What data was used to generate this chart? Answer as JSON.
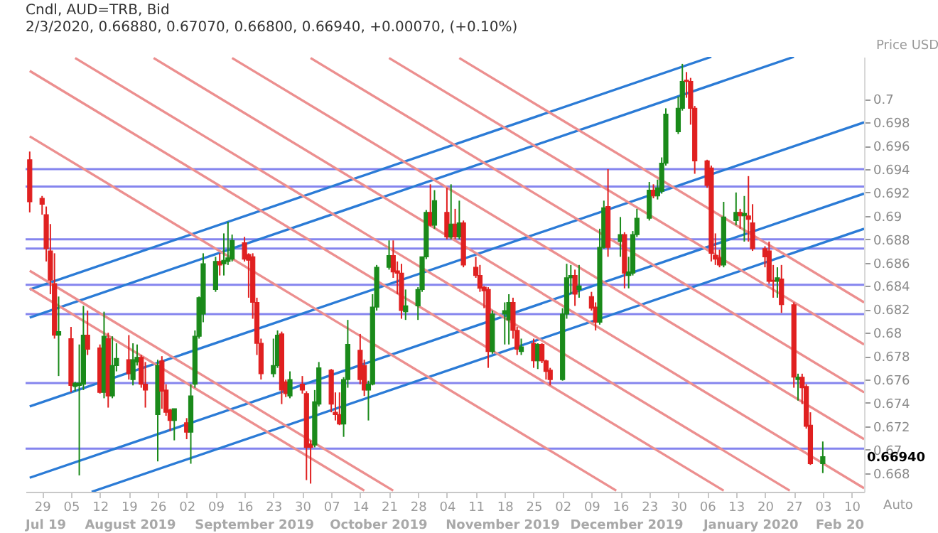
{
  "chart_data": {
    "type": "candlestick",
    "title": "Cndl, AUD=TRB, Bid",
    "subtitle": "2/3/2020, 0.66880, 0.67070, 0.66800, 0.66940, +0.00070, (+0.10%)",
    "ylabel": "Price USD",
    "colors": [
      "#e02020",
      "#e02020",
      "#e02020",
      "#e02020",
      "#e02020",
      "#1a8a1a",
      "#e02020",
      "#1a8a1a",
      "#1a8a1a",
      "#1a8a1a",
      "#e02020",
      "#e02020",
      "#1a8a1a",
      "#e02020",
      "#1a8a1a",
      "#1a8a1a",
      "#e02020",
      "#1a8a1a",
      "#1a8a1a",
      "#e02020",
      "#e02020",
      "#1a8a1a",
      "#e02020",
      "#e02020",
      "#e02020",
      "#1a8a1a",
      "#e02020",
      "#1a8a1a",
      "#1a8a1a",
      "#1a8a1a",
      "#1a8a1a",
      "#1a8a1a",
      "#e02020",
      "#1a8a1a",
      "#1a8a1a",
      "#1a8a1a",
      "#e02020",
      "#e02020",
      "#e02020",
      "#e02020",
      "#e02020",
      "#1a8a1a",
      "#1a8a1a",
      "#e02020",
      "#e02020",
      "#1a8a1a",
      "#e02020",
      "#e02020",
      "#e02020",
      "#1a8a1a",
      "#1a8a1a",
      "#e02020",
      "#e02020",
      "#e02020",
      "#1a8a1a",
      "#1a8a1a",
      "#e02020",
      "#e02020",
      "#1a8a1a",
      "#1a8a1a",
      "#1a8a1a",
      "#1a8a1a",
      "#e02020",
      "#e02020",
      "#e02020",
      "#1a8a1a",
      "#1a8a1a",
      "#1a8a1a",
      "#1a8a1a",
      "#e02020",
      "#1a8a1a",
      "#e02020",
      "#1a8a1a",
      "#e02020",
      "#1a8a1a",
      "#e02020",
      "#e02020",
      "#e02020",
      "#e02020",
      "#e02020",
      "#1a8a1a",
      "#1a8a1a",
      "#1a8a1a",
      "#e02020",
      "#e02020",
      "#1a8a1a",
      "#e02020",
      "#1a8a1a",
      "#e02020",
      "#e02020",
      "#e02020",
      "#1a8a1a",
      "#1a8a1a",
      "#1a8a1a",
      "#e02020",
      "#1a8a1a",
      "#e02020",
      "#e02020",
      "#1a8a1a",
      "#1a8a1a",
      "#e02020",
      "#1a8a1a",
      "#e02020",
      "#1a8a1a",
      "#1a8a1a",
      "#1a8a1a",
      "#1a8a1a",
      "#e02020",
      "#1a8a1a",
      "#1a8a1a",
      "#1a8a1a",
      "#1a8a1a",
      "#1a8a1a",
      "#e02020",
      "#e02020",
      "#e02020",
      "#e02020",
      "#e02020",
      "#e02020",
      "#e02020",
      "#1a8a1a",
      "#1a8a1a",
      "#e02020",
      "#1a8a1a",
      "#e02020",
      "#e02020",
      "#e02020",
      "#e02020",
      "#e02020",
      "#1a8a1a",
      "#e02020",
      "#e02020",
      "#1a8a1a",
      "#e02020",
      "#e02020",
      "#e02020",
      "#1a8a1a"
    ],
    "x": [
      "2019-07-26",
      "2019-07-29",
      "2019-07-30",
      "2019-07-31",
      "2019-08-01",
      "2019-08-02",
      "2019-08-05",
      "2019-08-06",
      "2019-08-07",
      "2019-08-08",
      "2019-08-09",
      "2019-08-12",
      "2019-08-13",
      "2019-08-14",
      "2019-08-15",
      "2019-08-16",
      "2019-08-19",
      "2019-08-20",
      "2019-08-21",
      "2019-08-22",
      "2019-08-23",
      "2019-08-26",
      "2019-08-27",
      "2019-08-28",
      "2019-08-29",
      "2019-08-30",
      "2019-09-02",
      "2019-09-03",
      "2019-09-04",
      "2019-09-05",
      "2019-09-06",
      "2019-09-09",
      "2019-09-10",
      "2019-09-11",
      "2019-09-12",
      "2019-09-13",
      "2019-09-16",
      "2019-09-17",
      "2019-09-18",
      "2019-09-19",
      "2019-09-20",
      "2019-09-23",
      "2019-09-24",
      "2019-09-25",
      "2019-09-26",
      "2019-09-27",
      "2019-09-30",
      "2019-10-01",
      "2019-10-02",
      "2019-10-03",
      "2019-10-04",
      "2019-10-07",
      "2019-10-08",
      "2019-10-09",
      "2019-10-10",
      "2019-10-11",
      "2019-10-14",
      "2019-10-15",
      "2019-10-16",
      "2019-10-17",
      "2019-10-18",
      "2019-10-21",
      "2019-10-22",
      "2019-10-23",
      "2019-10-24",
      "2019-10-25",
      "2019-10-28",
      "2019-10-29",
      "2019-10-30",
      "2019-10-31",
      "2019-11-01",
      "2019-11-04",
      "2019-11-05",
      "2019-11-06",
      "2019-11-07",
      "2019-11-08",
      "2019-11-11",
      "2019-11-12",
      "2019-11-13",
      "2019-11-14",
      "2019-11-15",
      "2019-11-18",
      "2019-11-19",
      "2019-11-20",
      "2019-11-21",
      "2019-11-22",
      "2019-11-25",
      "2019-11-26",
      "2019-11-27",
      "2019-11-28",
      "2019-11-29",
      "2019-12-02",
      "2019-12-03",
      "2019-12-04",
      "2019-12-05",
      "2019-12-06",
      "2019-12-09",
      "2019-12-10",
      "2019-12-11",
      "2019-12-12",
      "2019-12-13",
      "2019-12-16",
      "2019-12-17",
      "2019-12-18",
      "2019-12-19",
      "2019-12-20",
      "2019-12-23",
      "2019-12-24",
      "2019-12-25",
      "2019-12-26",
      "2019-12-27",
      "2019-12-30",
      "2019-12-31",
      "2020-01-01",
      "2020-01-02",
      "2020-01-03",
      "2020-01-06",
      "2020-01-07",
      "2020-01-08",
      "2020-01-09",
      "2020-01-10",
      "2020-01-13",
      "2020-01-14",
      "2020-01-15",
      "2020-01-16",
      "2020-01-17",
      "2020-01-20",
      "2020-01-21",
      "2020-01-22",
      "2020-01-23",
      "2020-01-24",
      "2020-01-27",
      "2020-01-28",
      "2020-01-29",
      "2020-01-30",
      "2020-01-31",
      "2020-02-03"
    ],
    "ohlc": [
      [
        0.6948,
        0.6955,
        0.6903,
        0.6912
      ],
      [
        0.6915,
        0.6917,
        0.6901,
        0.691
      ],
      [
        0.6901,
        0.6908,
        0.6861,
        0.6872
      ],
      [
        0.687,
        0.6893,
        0.6833,
        0.6845
      ],
      [
        0.6842,
        0.6868,
        0.6795,
        0.6798
      ],
      [
        0.6798,
        0.6831,
        0.6763,
        0.6801
      ],
      [
        0.6795,
        0.6805,
        0.6749,
        0.6755
      ],
      [
        0.6754,
        0.6758,
        0.675,
        0.6757
      ],
      [
        0.6755,
        0.679,
        0.6678,
        0.6757
      ],
      [
        0.6756,
        0.6823,
        0.6751,
        0.6798
      ],
      [
        0.6798,
        0.6819,
        0.6781,
        0.6786
      ],
      [
        0.6787,
        0.679,
        0.6748,
        0.6749
      ],
      [
        0.6749,
        0.6818,
        0.6744,
        0.6797
      ],
      [
        0.6795,
        0.68,
        0.6736,
        0.6746
      ],
      [
        0.6746,
        0.6797,
        0.6744,
        0.6772
      ],
      [
        0.6772,
        0.6791,
        0.6767,
        0.6778
      ],
      [
        0.6777,
        0.6798,
        0.676,
        0.6765
      ],
      [
        0.676,
        0.6791,
        0.6755,
        0.6777
      ],
      [
        0.6775,
        0.679,
        0.6772,
        0.6779
      ],
      [
        0.6779,
        0.6781,
        0.6753,
        0.6756
      ],
      [
        0.6756,
        0.6775,
        0.6736,
        0.6751
      ],
      [
        0.673,
        0.6777,
        0.669,
        0.6772
      ],
      [
        0.6776,
        0.678,
        0.6735,
        0.675
      ],
      [
        0.6751,
        0.6756,
        0.6729,
        0.6732
      ],
      [
        0.6734,
        0.6735,
        0.6716,
        0.6725
      ],
      [
        0.6725,
        0.6735,
        0.6708,
        0.6735
      ],
      [
        0.6723,
        0.6727,
        0.6709,
        0.6715
      ],
      [
        0.6715,
        0.6756,
        0.6688,
        0.6746
      ],
      [
        0.6756,
        0.6802,
        0.6753,
        0.6797
      ],
      [
        0.6797,
        0.6831,
        0.6795,
        0.683
      ],
      [
        0.6816,
        0.6868,
        0.6809,
        0.6859
      ],
      [
        0.6837,
        0.6865,
        0.6835,
        0.6861
      ],
      [
        0.6861,
        0.6868,
        0.6849,
        0.6858
      ],
      [
        0.6859,
        0.6885,
        0.6849,
        0.6862
      ],
      [
        0.6861,
        0.6895,
        0.6858,
        0.6864
      ],
      [
        0.6863,
        0.6884,
        0.6861,
        0.6879
      ],
      [
        0.6877,
        0.6882,
        0.6861,
        0.6863
      ],
      [
        0.6867,
        0.6868,
        0.683,
        0.6862
      ],
      [
        0.6865,
        0.6868,
        0.6812,
        0.6826
      ],
      [
        0.6826,
        0.683,
        0.6781,
        0.6791
      ],
      [
        0.6791,
        0.6795,
        0.676,
        0.6765
      ],
      [
        0.6765,
        0.6795,
        0.6762,
        0.6772
      ],
      [
        0.6772,
        0.6802,
        0.677,
        0.6798
      ],
      [
        0.6799,
        0.6801,
        0.6739,
        0.6751
      ],
      [
        0.6758,
        0.676,
        0.6745,
        0.6748
      ],
      [
        0.6746,
        0.6767,
        0.6744,
        0.676
      ],
      [
        0.6756,
        0.6763,
        0.6748,
        0.6751
      ],
      [
        0.6748,
        0.675,
        0.6674,
        0.6702
      ],
      [
        0.6705,
        0.6708,
        0.6671,
        0.6702
      ],
      [
        0.6704,
        0.6751,
        0.6702,
        0.6741
      ],
      [
        0.6739,
        0.6775,
        0.6737,
        0.677
      ],
      [
        0.6768,
        0.6769,
        0.6732,
        0.6739
      ],
      [
        0.6732,
        0.6749,
        0.6725,
        0.673
      ],
      [
        0.673,
        0.6749,
        0.6721,
        0.6722
      ],
      [
        0.6722,
        0.6762,
        0.6711,
        0.676
      ],
      [
        0.676,
        0.6811,
        0.6753,
        0.679
      ],
      [
        0.6785,
        0.6799,
        0.6756,
        0.676
      ],
      [
        0.6772,
        0.6777,
        0.6746,
        0.6751
      ],
      [
        0.6751,
        0.6759,
        0.6725,
        0.6756
      ],
      [
        0.6756,
        0.6833,
        0.6755,
        0.6822
      ],
      [
        0.6822,
        0.6858,
        0.6819,
        0.6856
      ],
      [
        0.6856,
        0.6879,
        0.6854,
        0.6866
      ],
      [
        0.6866,
        0.6879,
        0.6847,
        0.6852
      ],
      [
        0.6853,
        0.6861,
        0.6833,
        0.6851
      ],
      [
        0.6851,
        0.6859,
        0.6812,
        0.6819
      ],
      [
        0.6818,
        0.6837,
        0.6811,
        0.6823
      ],
      [
        0.6823,
        0.6839,
        0.6811,
        0.6837
      ],
      [
        0.6837,
        0.6865,
        0.6835,
        0.6865
      ],
      [
        0.6865,
        0.6905,
        0.6863,
        0.6903
      ],
      [
        0.6903,
        0.6927,
        0.6891,
        0.6892
      ],
      [
        0.6892,
        0.6922,
        0.6889,
        0.6913
      ],
      [
        0.6903,
        0.6924,
        0.688,
        0.6882
      ],
      [
        0.6882,
        0.6927,
        0.688,
        0.6893
      ],
      [
        0.6893,
        0.6906,
        0.688,
        0.6882
      ],
      [
        0.6882,
        0.6913,
        0.688,
        0.6894
      ],
      [
        0.6894,
        0.6896,
        0.6856,
        0.6858
      ],
      [
        0.6856,
        0.6865,
        0.6847,
        0.6849
      ],
      [
        0.6849,
        0.6858,
        0.6835,
        0.6838
      ],
      [
        0.6839,
        0.684,
        0.6821,
        0.6836
      ],
      [
        0.6837,
        0.6839,
        0.677,
        0.6784
      ],
      [
        0.6784,
        0.6819,
        0.6782,
        0.6816
      ],
      [
        0.6816,
        0.6826,
        0.679,
        0.6819
      ],
      [
        0.6811,
        0.6833,
        0.679,
        0.6826
      ],
      [
        0.6826,
        0.683,
        0.6795,
        0.6802
      ],
      [
        0.6802,
        0.6805,
        0.6781,
        0.6786
      ],
      [
        0.6784,
        0.6795,
        0.6781,
        0.6788
      ],
      [
        0.6791,
        0.6795,
        0.677,
        0.6776
      ],
      [
        0.6776,
        0.6791,
        0.6769,
        0.679
      ],
      [
        0.679,
        0.6791,
        0.6774,
        0.6776
      ],
      [
        0.6776,
        0.6777,
        0.676,
        0.6767
      ],
      [
        0.6768,
        0.677,
        0.6755,
        0.676
      ],
      [
        0.676,
        0.6821,
        0.6759,
        0.6816
      ],
      [
        0.6816,
        0.6859,
        0.6812,
        0.6847
      ],
      [
        0.6847,
        0.6858,
        0.6833,
        0.6849
      ],
      [
        0.6849,
        0.6854,
        0.6823,
        0.6833
      ],
      [
        0.6837,
        0.6858,
        0.683,
        0.684
      ],
      [
        0.6831,
        0.6835,
        0.6819,
        0.6821
      ],
      [
        0.6822,
        0.6826,
        0.6802,
        0.6809
      ],
      [
        0.6809,
        0.6889,
        0.6807,
        0.6873
      ],
      [
        0.6873,
        0.6913,
        0.6872,
        0.6907
      ],
      [
        0.6908,
        0.694,
        0.6865,
        0.6873
      ],
      [
        0.6878,
        0.6899,
        0.6865,
        0.6884
      ],
      [
        0.6884,
        0.6886,
        0.6838,
        0.6851
      ],
      [
        0.6849,
        0.6865,
        0.6838,
        0.6852
      ],
      [
        0.6851,
        0.6887,
        0.6849,
        0.6884
      ],
      [
        0.6884,
        0.6906,
        0.6882,
        0.6898
      ],
      [
        0.6898,
        0.6929,
        0.6896,
        0.6922
      ],
      [
        0.6922,
        0.6927,
        0.6915,
        0.6917
      ],
      [
        0.6917,
        0.6931,
        0.6914,
        0.6924
      ],
      [
        0.6921,
        0.695,
        0.6919,
        0.6945
      ],
      [
        0.6945,
        0.6992,
        0.6943,
        0.6987
      ],
      [
        0.6972,
        0.7002,
        0.697,
        0.6992
      ],
      [
        0.6992,
        0.703,
        0.699,
        0.7015
      ],
      [
        0.7016,
        0.7023,
        0.7001,
        0.7015
      ],
      [
        0.7015,
        0.7018,
        0.6978,
        0.6992
      ],
      [
        0.6992,
        0.6994,
        0.6936,
        0.6947
      ],
      [
        0.6947,
        0.6948,
        0.6924,
        0.6926
      ],
      [
        0.6941,
        0.6943,
        0.6861,
        0.6868
      ],
      [
        0.6866,
        0.6885,
        0.6858,
        0.6863
      ],
      [
        0.6864,
        0.6871,
        0.6856,
        0.6858
      ],
      [
        0.6858,
        0.6912,
        0.6856,
        0.6899
      ],
      [
        0.6896,
        0.692,
        0.6892,
        0.6903
      ],
      [
        0.6903,
        0.6906,
        0.6889,
        0.69
      ],
      [
        0.69,
        0.6917,
        0.6878,
        0.6902
      ],
      [
        0.69,
        0.6934,
        0.6878,
        0.6897
      ],
      [
        0.6894,
        0.691,
        0.687,
        0.6872
      ],
      [
        0.6872,
        0.6874,
        0.6856,
        0.6865
      ],
      [
        0.687,
        0.6878,
        0.6842,
        0.6844
      ],
      [
        0.6845,
        0.6858,
        0.683,
        0.6844
      ],
      [
        0.6844,
        0.6856,
        0.683,
        0.6847
      ],
      [
        0.6846,
        0.6858,
        0.6817,
        0.6824
      ],
      [
        0.6824,
        0.6826,
        0.6753,
        0.6762
      ],
      [
        0.676,
        0.6765,
        0.6742,
        0.6762
      ],
      [
        0.6762,
        0.6765,
        0.6739,
        0.6753
      ],
      [
        0.6754,
        0.6756,
        0.6718,
        0.672
      ],
      [
        0.6721,
        0.6732,
        0.6687,
        0.6688
      ],
      [
        0.6688,
        0.6707,
        0.668,
        0.6694
      ]
    ],
    "series": [
      {
        "type": "line",
        "color": "#2b7bd6",
        "x": [
          "2019-07-26",
          "2020-01-07"
        ],
        "values": [
          0.6837,
          0.7036
        ]
      },
      {
        "type": "line",
        "color": "#2b7bd6",
        "x": [
          "2019-07-26",
          "2020-01-27"
        ],
        "values": [
          0.6813,
          0.7036
        ]
      },
      {
        "type": "line",
        "color": "#2b7bd6",
        "x": [
          "2019-07-26",
          "2020-02-13"
        ],
        "values": [
          0.6737,
          0.698
        ]
      },
      {
        "type": "line",
        "color": "#2b7bd6",
        "x": [
          "2019-07-26",
          "2020-02-13"
        ],
        "values": [
          0.6676,
          0.6919
        ]
      },
      {
        "type": "line",
        "color": "#2b7bd6",
        "x": [
          "2019-08-10",
          "2020-02-13"
        ],
        "values": [
          0.6664,
          0.6889
        ]
      },
      {
        "type": "line",
        "color": "#ec8f8f",
        "x": [
          "2019-11-07",
          "2020-02-13"
        ],
        "values": [
          0.7035,
          0.6826
        ]
      },
      {
        "type": "line",
        "color": "#ec8f8f",
        "x": [
          "2019-10-21",
          "2020-02-13"
        ],
        "values": [
          0.7035,
          0.679
        ]
      },
      {
        "type": "line",
        "color": "#ec8f8f",
        "x": [
          "2019-10-02",
          "2020-02-13"
        ],
        "values": [
          0.7035,
          0.6749
        ]
      },
      {
        "type": "line",
        "color": "#ec8f8f",
        "x": [
          "2019-09-13",
          "2020-02-13"
        ],
        "values": [
          0.7035,
          0.6709
        ]
      },
      {
        "type": "line",
        "color": "#ec8f8f",
        "x": [
          "2019-08-25",
          "2020-02-13"
        ],
        "values": [
          0.7035,
          0.6667
        ]
      },
      {
        "type": "line",
        "color": "#ec8f8f",
        "x": [
          "2019-08-06",
          "2020-01-26"
        ],
        "values": [
          0.7035,
          0.6665
        ]
      },
      {
        "type": "line",
        "color": "#ec8f8f",
        "x": [
          "2019-07-26",
          "2020-01-10"
        ],
        "values": [
          0.7024,
          0.6665
        ]
      },
      {
        "type": "line",
        "color": "#ec8f8f",
        "x": [
          "2019-07-26",
          "2019-12-15"
        ],
        "values": [
          0.6968,
          0.6665
        ]
      },
      {
        "type": "line",
        "color": "#ec8f8f",
        "x": [
          "2019-07-26",
          "2019-10-22"
        ],
        "values": [
          0.6853,
          0.6665
        ]
      },
      {
        "type": "line",
        "color": "#ec8f8f",
        "x": [
          "2019-07-26",
          "2019-10-15"
        ],
        "values": [
          0.6838,
          0.6665
        ]
      }
    ],
    "ref_lines": [
      {
        "axis": "y",
        "value": 0.694,
        "color": "#8585ee"
      },
      {
        "axis": "y",
        "value": 0.6925,
        "color": "#8585ee"
      },
      {
        "axis": "y",
        "value": 0.688,
        "color": "#8585ee"
      },
      {
        "axis": "y",
        "value": 0.6872,
        "color": "#8585ee"
      },
      {
        "axis": "y",
        "value": 0.6841,
        "color": "#8585ee"
      },
      {
        "axis": "y",
        "value": 0.6816,
        "color": "#8585ee"
      },
      {
        "axis": "y",
        "value": 0.6757,
        "color": "#8585ee"
      },
      {
        "axis": "y",
        "value": 0.6701,
        "color": "#8585ee"
      }
    ],
    "xlim": [
      "2019-07-25",
      "2020-02-13"
    ],
    "xticks": [
      {
        "value": "2019-07-29",
        "label": "29"
      },
      {
        "value": "2019-08-05",
        "label": "05"
      },
      {
        "value": "2019-08-12",
        "label": "12"
      },
      {
        "value": "2019-08-19",
        "label": "19"
      },
      {
        "value": "2019-08-26",
        "label": "26"
      },
      {
        "value": "2019-09-02",
        "label": "02"
      },
      {
        "value": "2019-09-09",
        "label": "09"
      },
      {
        "value": "2019-09-16",
        "label": "16"
      },
      {
        "value": "2019-09-23",
        "label": "23"
      },
      {
        "value": "2019-09-30",
        "label": "30"
      },
      {
        "value": "2019-10-07",
        "label": "07"
      },
      {
        "value": "2019-10-14",
        "label": "14"
      },
      {
        "value": "2019-10-21",
        "label": "21"
      },
      {
        "value": "2019-10-28",
        "label": "28"
      },
      {
        "value": "2019-11-04",
        "label": "04"
      },
      {
        "value": "2019-11-11",
        "label": "11"
      },
      {
        "value": "2019-11-18",
        "label": "18"
      },
      {
        "value": "2019-11-25",
        "label": "25"
      },
      {
        "value": "2019-12-02",
        "label": "02"
      },
      {
        "value": "2019-12-09",
        "label": "09"
      },
      {
        "value": "2019-12-16",
        "label": "16"
      },
      {
        "value": "2019-12-23",
        "label": "23"
      },
      {
        "value": "2019-12-30",
        "label": "30"
      },
      {
        "value": "2020-01-06",
        "label": "06"
      },
      {
        "value": "2020-01-13",
        "label": "13"
      },
      {
        "value": "2020-01-20",
        "label": "20"
      },
      {
        "value": "2020-01-27",
        "label": "27"
      },
      {
        "value": "2020-02-03",
        "label": "03"
      },
      {
        "value": "2020-02-10",
        "label": "10"
      }
    ],
    "ylim": [
      0.6664,
      0.7036
    ],
    "yticks": [
      0.668,
      0.67,
      0.672,
      0.674,
      0.676,
      0.678,
      0.68,
      0.682,
      0.684,
      0.686,
      0.688,
      0.69,
      0.692,
      0.694,
      0.696,
      0.698,
      0.7
    ],
    "annotations": [
      "Jul 19",
      "August 2019",
      "September 2019",
      "October 2019",
      "November 2019",
      "December 2019",
      "January 2020",
      "Feb 20",
      "0.66940",
      "Auto"
    ]
  }
}
